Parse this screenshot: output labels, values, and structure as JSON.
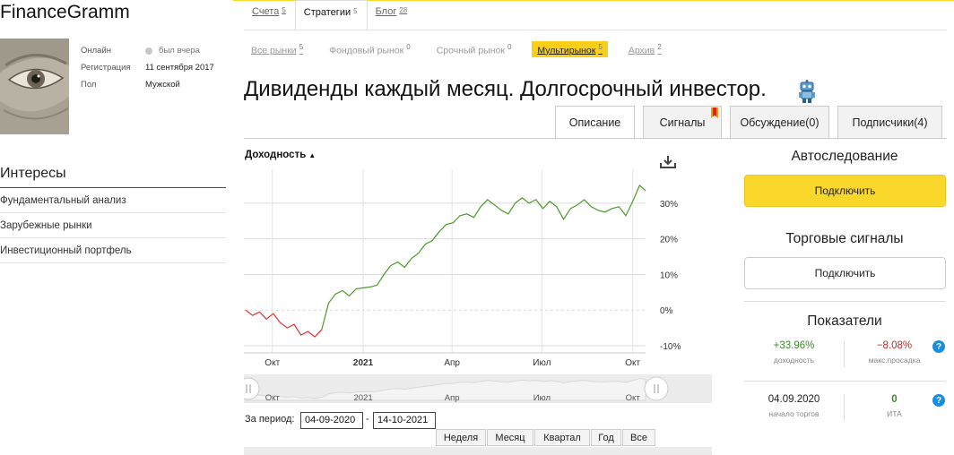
{
  "profile": {
    "username": "FinanceGramm",
    "rows": [
      {
        "label": "Онлайн",
        "value": "был вчера"
      },
      {
        "label": "Регистрация",
        "value": "11 сентября 2017"
      },
      {
        "label": "Пол",
        "value": "Мужской"
      }
    ]
  },
  "interests": {
    "title": "Интересы",
    "items": [
      "Фундаментальный анализ",
      "Зарубежные рынки",
      "Инвестиционный портфель"
    ]
  },
  "tabs_main": [
    {
      "label": "Счета",
      "count": "5"
    },
    {
      "label": "Стратегии",
      "count": "5"
    },
    {
      "label": "Блог",
      "count": "28"
    }
  ],
  "tabs_market": [
    {
      "label": "Все рынки",
      "count": "5"
    },
    {
      "label": "Фондовый рынок",
      "count": "0"
    },
    {
      "label": "Срочный рынок",
      "count": "0"
    },
    {
      "label": "Мультирынок",
      "count": "5"
    },
    {
      "label": "Архив",
      "count": "2"
    }
  ],
  "strategy_title": "Дивиденды каждый месяц. Долгосрочный инвестор.",
  "detail_tabs": [
    "Описание",
    "Сигналы",
    "Обсуждение(0)",
    "Подписчики(4)"
  ],
  "chart_header": "Доходность",
  "chart_data": {
    "type": "line",
    "title": "",
    "ylabel": "",
    "y_ticks": [
      "-10%",
      "0%",
      "10%",
      "20%",
      "30%"
    ],
    "ylim": [
      -12,
      38
    ],
    "x_ticks": [
      "Окт",
      "2021",
      "Апр",
      "Июл",
      "Окт"
    ],
    "navigator_ticks": [
      "Окт",
      "2021",
      "Апр",
      "Июл",
      "Окт"
    ],
    "grid": true,
    "colors": {
      "negative": "#e03030",
      "positive": "#4a9a2a"
    },
    "series": [
      {
        "x": [
          "2020-09-04",
          "2020-09-11",
          "2020-09-18",
          "2020-09-25",
          "2020-10-02",
          "2020-10-09",
          "2020-10-16",
          "2020-10-23",
          "2020-10-30",
          "2020-11-06",
          "2020-11-13",
          "2020-11-20",
          "2020-11-27",
          "2020-12-04",
          "2020-12-11",
          "2020-12-18",
          "2020-12-25",
          "2021-01-08",
          "2021-01-15",
          "2021-01-22",
          "2021-01-29",
          "2021-02-05",
          "2021-02-12",
          "2021-02-19",
          "2021-02-26",
          "2021-03-05",
          "2021-03-12",
          "2021-03-19",
          "2021-03-26",
          "2021-04-02",
          "2021-04-09",
          "2021-04-16",
          "2021-04-23",
          "2021-04-30",
          "2021-05-07",
          "2021-05-14",
          "2021-05-21",
          "2021-05-28",
          "2021-06-04",
          "2021-06-11",
          "2021-06-18",
          "2021-06-25",
          "2021-07-02",
          "2021-07-09",
          "2021-07-16",
          "2021-07-23",
          "2021-07-30",
          "2021-08-06",
          "2021-08-13",
          "2021-08-20",
          "2021-08-27",
          "2021-09-03",
          "2021-09-10",
          "2021-09-17",
          "2021-09-24",
          "2021-10-01",
          "2021-10-08",
          "2021-10-14"
        ],
        "values": [
          0,
          -1.5,
          -0.5,
          -2.5,
          -1.0,
          -3.5,
          -5.0,
          -4.0,
          -7.0,
          -6.0,
          -7.5,
          -5.5,
          2.0,
          4.5,
          5.5,
          4.0,
          6.0,
          6.5,
          7.0,
          10.0,
          12.5,
          13.5,
          12.0,
          14.5,
          16.0,
          18.5,
          19.5,
          22.0,
          24.0,
          24.5,
          26.5,
          27.0,
          26.0,
          29.0,
          31.0,
          29.5,
          28.0,
          27.0,
          30.0,
          31.5,
          30.0,
          31.0,
          28.5,
          30.5,
          29.0,
          25.5,
          28.5,
          29.5,
          31.0,
          29.0,
          28.0,
          27.5,
          28.5,
          29.0,
          26.5,
          30.5,
          35.0,
          33.5
        ]
      }
    ]
  },
  "period": {
    "label": "За период:",
    "from": "04-09-2020",
    "to": "14-10-2021"
  },
  "ranges": [
    "Неделя",
    "Месяц",
    "Квартал",
    "Год",
    "Все"
  ],
  "right_panel": {
    "autofollow_title": "Автоследование",
    "connect_label": "Подключить",
    "signals_title": "Торговые сигналы",
    "signals_connect_label": "Подключить",
    "indicators_title": "Показатели",
    "yield_value": "+33.96%",
    "yield_label": "доходность",
    "drawdown_value": "−8.08%",
    "drawdown_label": "макс.просадка",
    "start_date": "04.09.2020",
    "start_label": "начало торгов",
    "ita_value": "0",
    "ita_label": "ИТА",
    "help": "?"
  },
  "colors": {
    "accent": "#f9cf17",
    "red": "#b6202a",
    "green": "#3b8a2a",
    "help": "#1a8de0"
  }
}
